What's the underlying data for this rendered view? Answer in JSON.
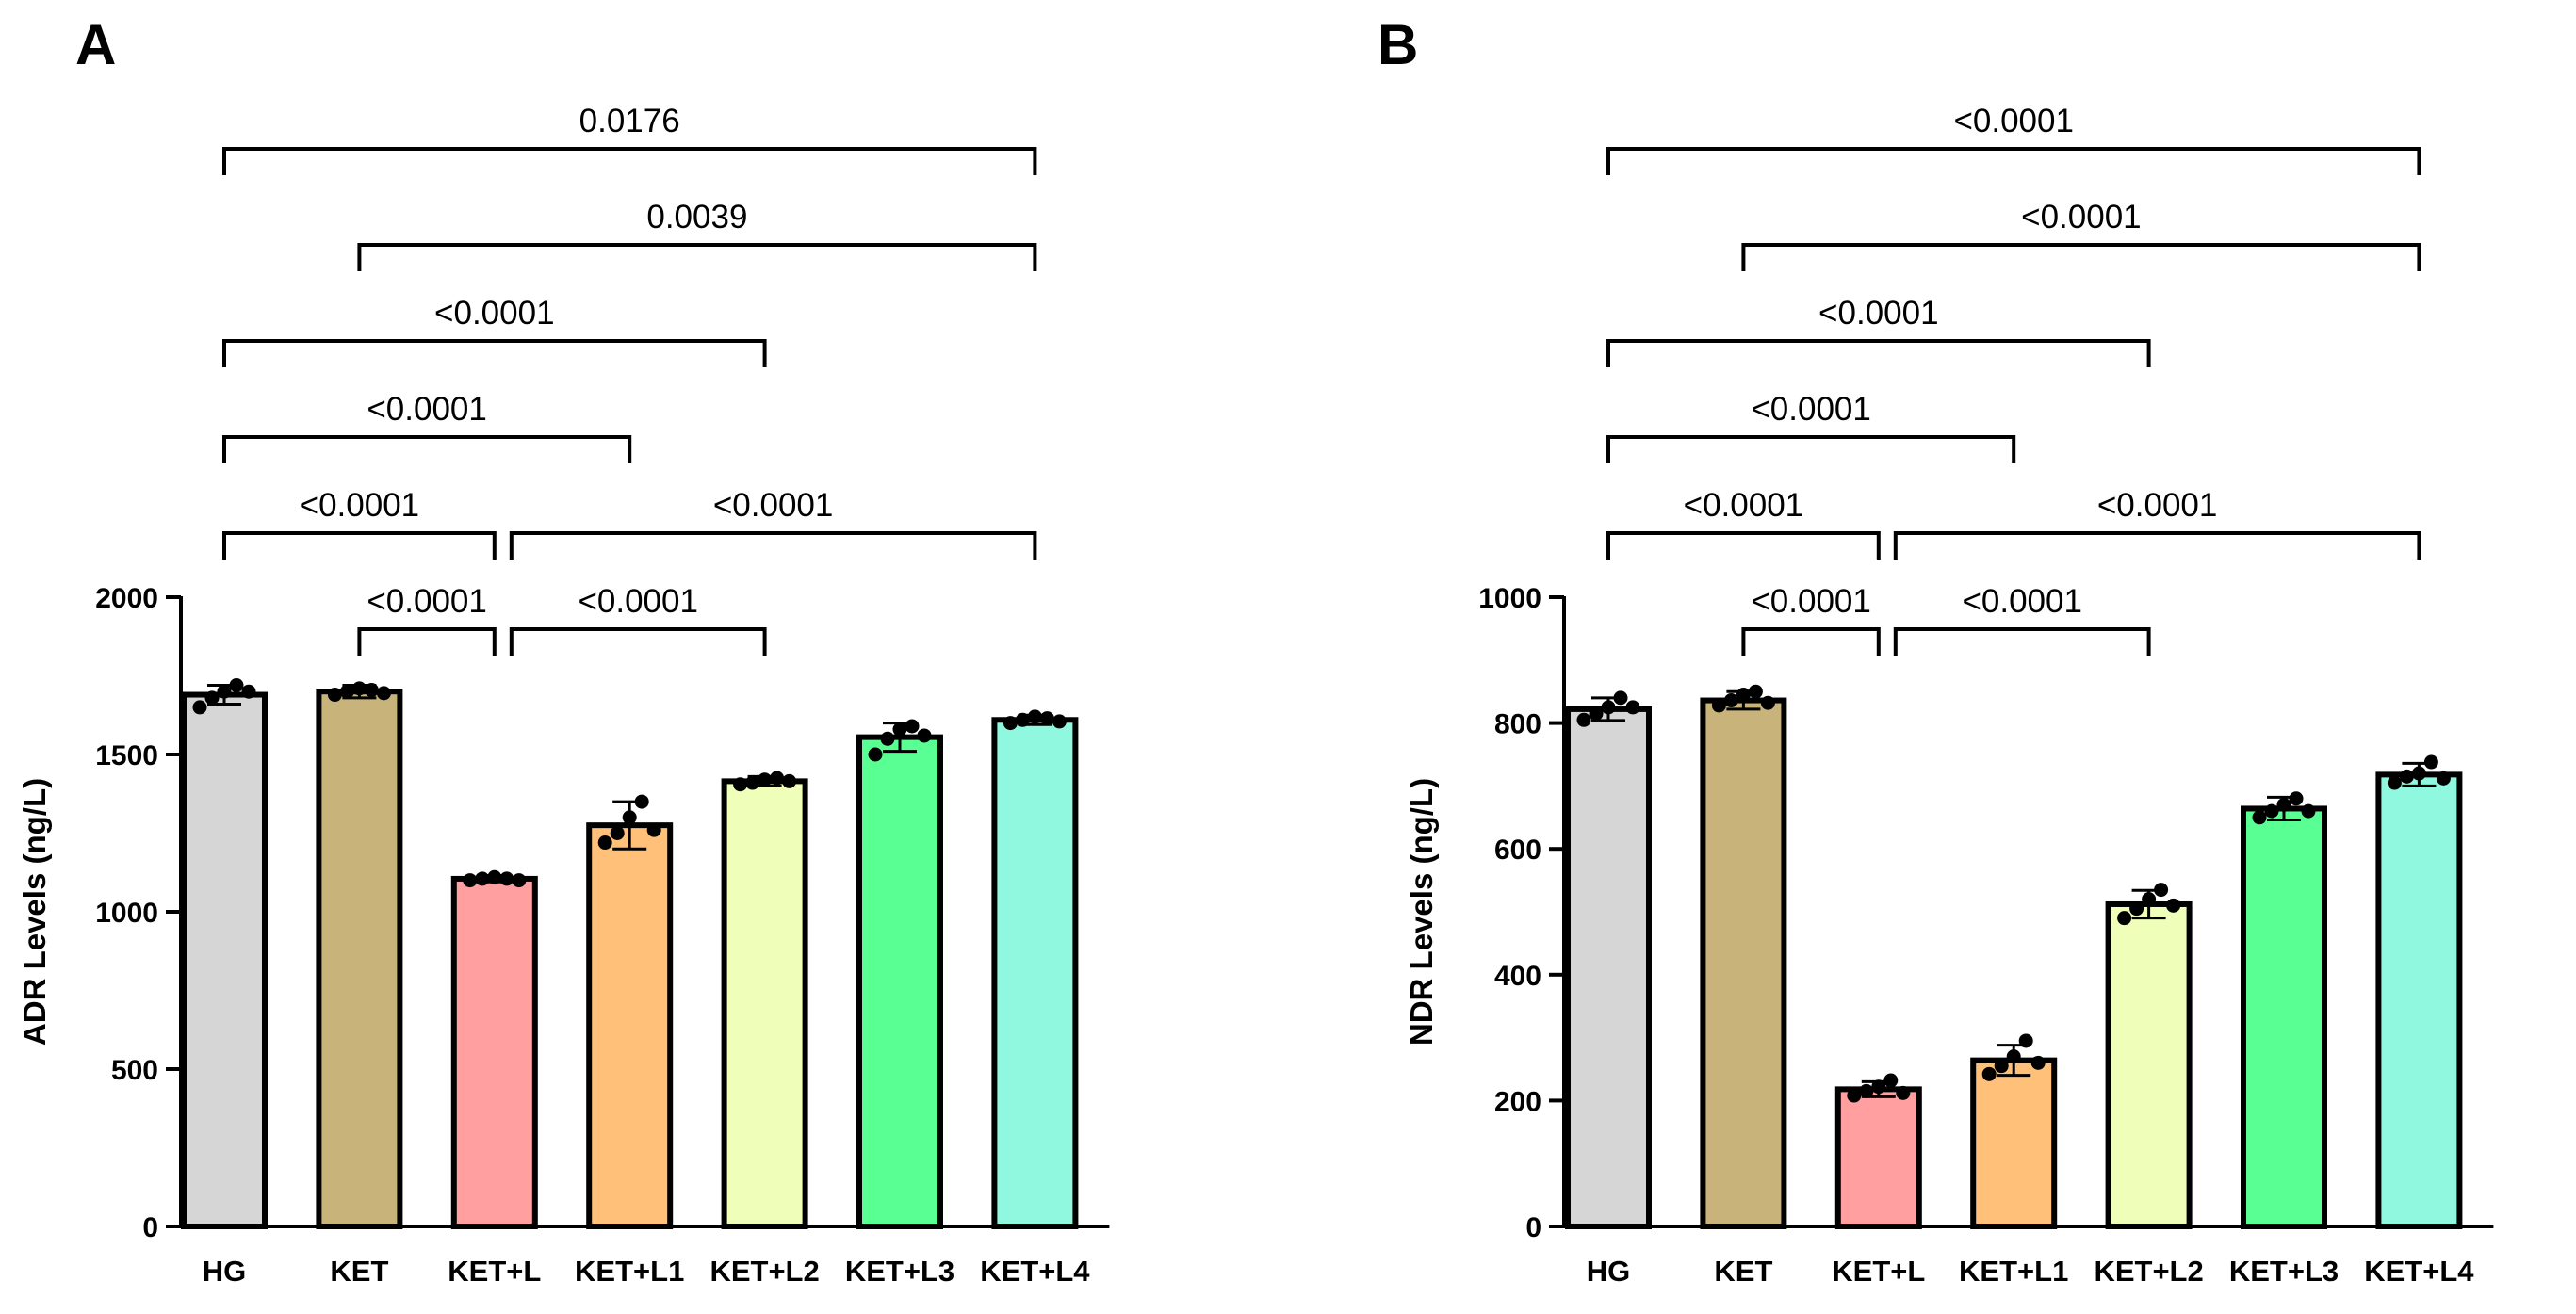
{
  "figure": {
    "panel_labels": [
      "A",
      "B"
    ]
  },
  "chart_data": [
    {
      "type": "bar",
      "panel": "A",
      "title": "",
      "xlabel": "",
      "ylabel": "ADR Levels (ng/L)",
      "ylim": [
        0,
        2000
      ],
      "yticks": [
        0,
        500,
        1000,
        1500,
        2000
      ],
      "categories": [
        "HG",
        "KET",
        "KET+L",
        "KET+L1",
        "KET+L2",
        "KET+L3",
        "KET+L4"
      ],
      "values": [
        1690,
        1700,
        1105,
        1275,
        1415,
        1555,
        1610
      ],
      "errors": [
        30,
        20,
        10,
        75,
        15,
        45,
        15
      ],
      "colors": [
        "#d6d6d6",
        "#c8b47a",
        "#ff9f9f",
        "#ffc079",
        "#efffb9",
        "#5aff93",
        "#8ff8de"
      ],
      "points": [
        [
          1650,
          1680,
          1700,
          1720,
          1700
        ],
        [
          1690,
          1700,
          1710,
          1705,
          1695
        ],
        [
          1100,
          1105,
          1110,
          1105,
          1100
        ],
        [
          1220,
          1250,
          1300,
          1350,
          1260
        ],
        [
          1405,
          1410,
          1420,
          1425,
          1415
        ],
        [
          1500,
          1550,
          1580,
          1590,
          1560
        ],
        [
          1600,
          1610,
          1620,
          1615,
          1605
        ]
      ],
      "comparisons": [
        {
          "from": 0,
          "to": 6,
          "p": "0.0176"
        },
        {
          "from": 1,
          "to": 6,
          "p": "0.0039"
        },
        {
          "from": 0,
          "to": 4,
          "p": "<0.0001"
        },
        {
          "from": 0,
          "to": 3,
          "p": "<0.0001"
        },
        {
          "from": 0,
          "to": 2,
          "p": "<0.0001"
        },
        {
          "from": 2,
          "to": 6,
          "p": "<0.0001"
        },
        {
          "from": 1,
          "to": 2,
          "p": "<0.0001"
        },
        {
          "from": 2,
          "to": 4,
          "p": "<0.0001"
        }
      ]
    },
    {
      "type": "bar",
      "panel": "B",
      "title": "",
      "xlabel": "",
      "ylabel": "NDR Levels (ng/L)",
      "ylim": [
        0,
        1000
      ],
      "yticks": [
        0,
        200,
        400,
        600,
        800,
        1000
      ],
      "categories": [
        "HG",
        "KET",
        "KET+L",
        "KET+L1",
        "KET+L2",
        "KET+L3",
        "KET+L4"
      ],
      "values": [
        822,
        836,
        218,
        264,
        512,
        664,
        718
      ],
      "errors": [
        18,
        14,
        12,
        24,
        22,
        18,
        18
      ],
      "colors": [
        "#d6d6d6",
        "#c8b47a",
        "#ff9f9f",
        "#ffc079",
        "#efffb9",
        "#5aff93",
        "#8ff8de"
      ],
      "points": [
        [
          805,
          815,
          825,
          840,
          825
        ],
        [
          828,
          836,
          845,
          850,
          832
        ],
        [
          208,
          215,
          222,
          232,
          212
        ],
        [
          242,
          255,
          270,
          295,
          260
        ],
        [
          490,
          505,
          520,
          535,
          510
        ],
        [
          650,
          660,
          670,
          680,
          660
        ],
        [
          705,
          715,
          720,
          738,
          712
        ]
      ],
      "comparisons": [
        {
          "from": 0,
          "to": 6,
          "p": "<0.0001"
        },
        {
          "from": 1,
          "to": 6,
          "p": "<0.0001"
        },
        {
          "from": 0,
          "to": 4,
          "p": "<0.0001"
        },
        {
          "from": 0,
          "to": 3,
          "p": "<0.0001"
        },
        {
          "from": 0,
          "to": 2,
          "p": "<0.0001"
        },
        {
          "from": 2,
          "to": 6,
          "p": "<0.0001"
        },
        {
          "from": 1,
          "to": 2,
          "p": "<0.0001"
        },
        {
          "from": 2,
          "to": 4,
          "p": "<0.0001"
        }
      ]
    }
  ]
}
